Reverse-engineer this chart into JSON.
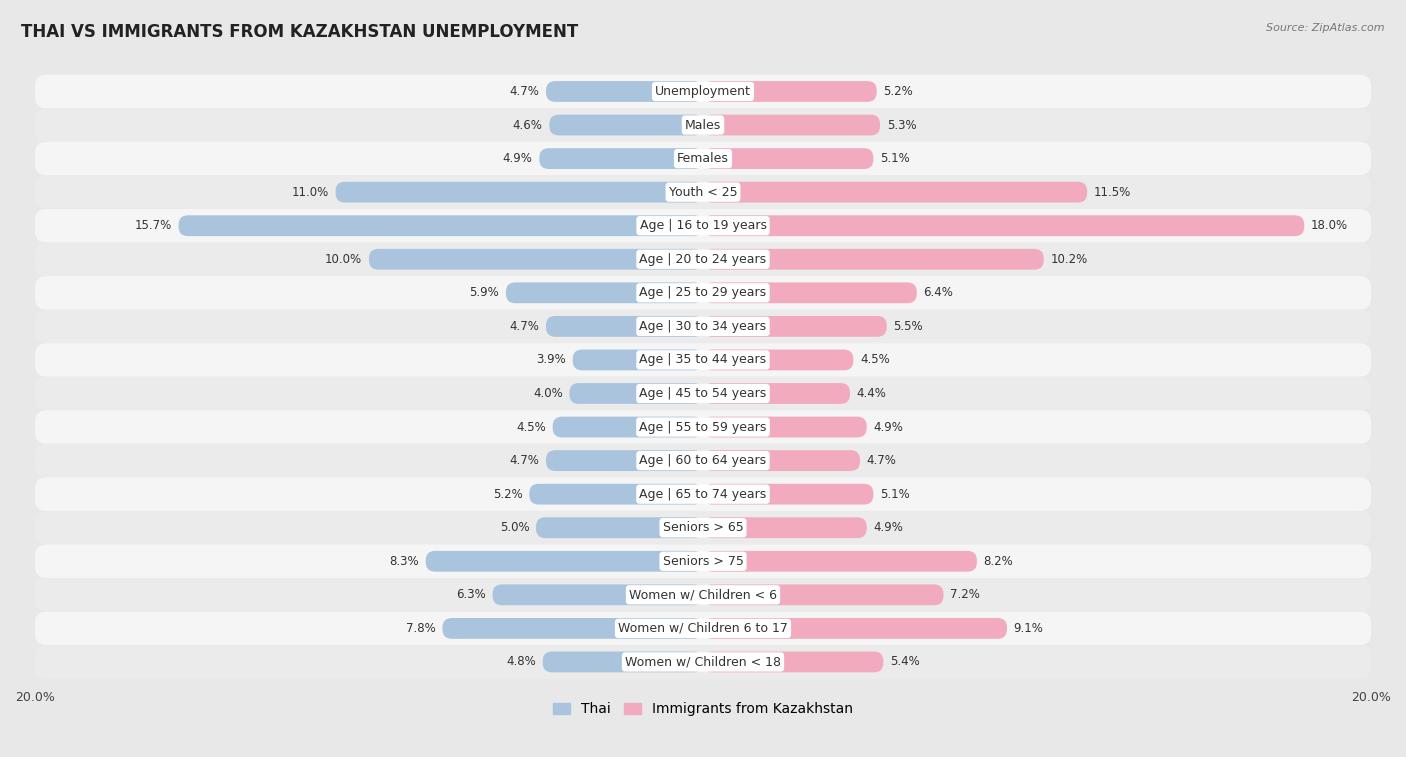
{
  "title": "THAI VS IMMIGRANTS FROM KAZAKHSTAN UNEMPLOYMENT",
  "source": "Source: ZipAtlas.com",
  "categories": [
    "Unemployment",
    "Males",
    "Females",
    "Youth < 25",
    "Age | 16 to 19 years",
    "Age | 20 to 24 years",
    "Age | 25 to 29 years",
    "Age | 30 to 34 years",
    "Age | 35 to 44 years",
    "Age | 45 to 54 years",
    "Age | 55 to 59 years",
    "Age | 60 to 64 years",
    "Age | 65 to 74 years",
    "Seniors > 65",
    "Seniors > 75",
    "Women w/ Children < 6",
    "Women w/ Children 6 to 17",
    "Women w/ Children < 18"
  ],
  "thai_values": [
    4.7,
    4.6,
    4.9,
    11.0,
    15.7,
    10.0,
    5.9,
    4.7,
    3.9,
    4.0,
    4.5,
    4.7,
    5.2,
    5.0,
    8.3,
    6.3,
    7.8,
    4.8
  ],
  "kaz_values": [
    5.2,
    5.3,
    5.1,
    11.5,
    18.0,
    10.2,
    6.4,
    5.5,
    4.5,
    4.4,
    4.9,
    4.7,
    5.1,
    4.9,
    8.2,
    7.2,
    9.1,
    5.4
  ],
  "thai_color": "#aac4de",
  "kaz_color": "#f2abbe",
  "max_val": 20.0,
  "row_bg_even": "#f5f5f5",
  "row_bg_odd": "#e8e8e8",
  "background_color": "#e8e8e8",
  "legend_thai": "Thai",
  "legend_kaz": "Immigrants from Kazakhstan",
  "title_fontsize": 12,
  "label_fontsize": 9.0,
  "value_fontsize": 8.5
}
